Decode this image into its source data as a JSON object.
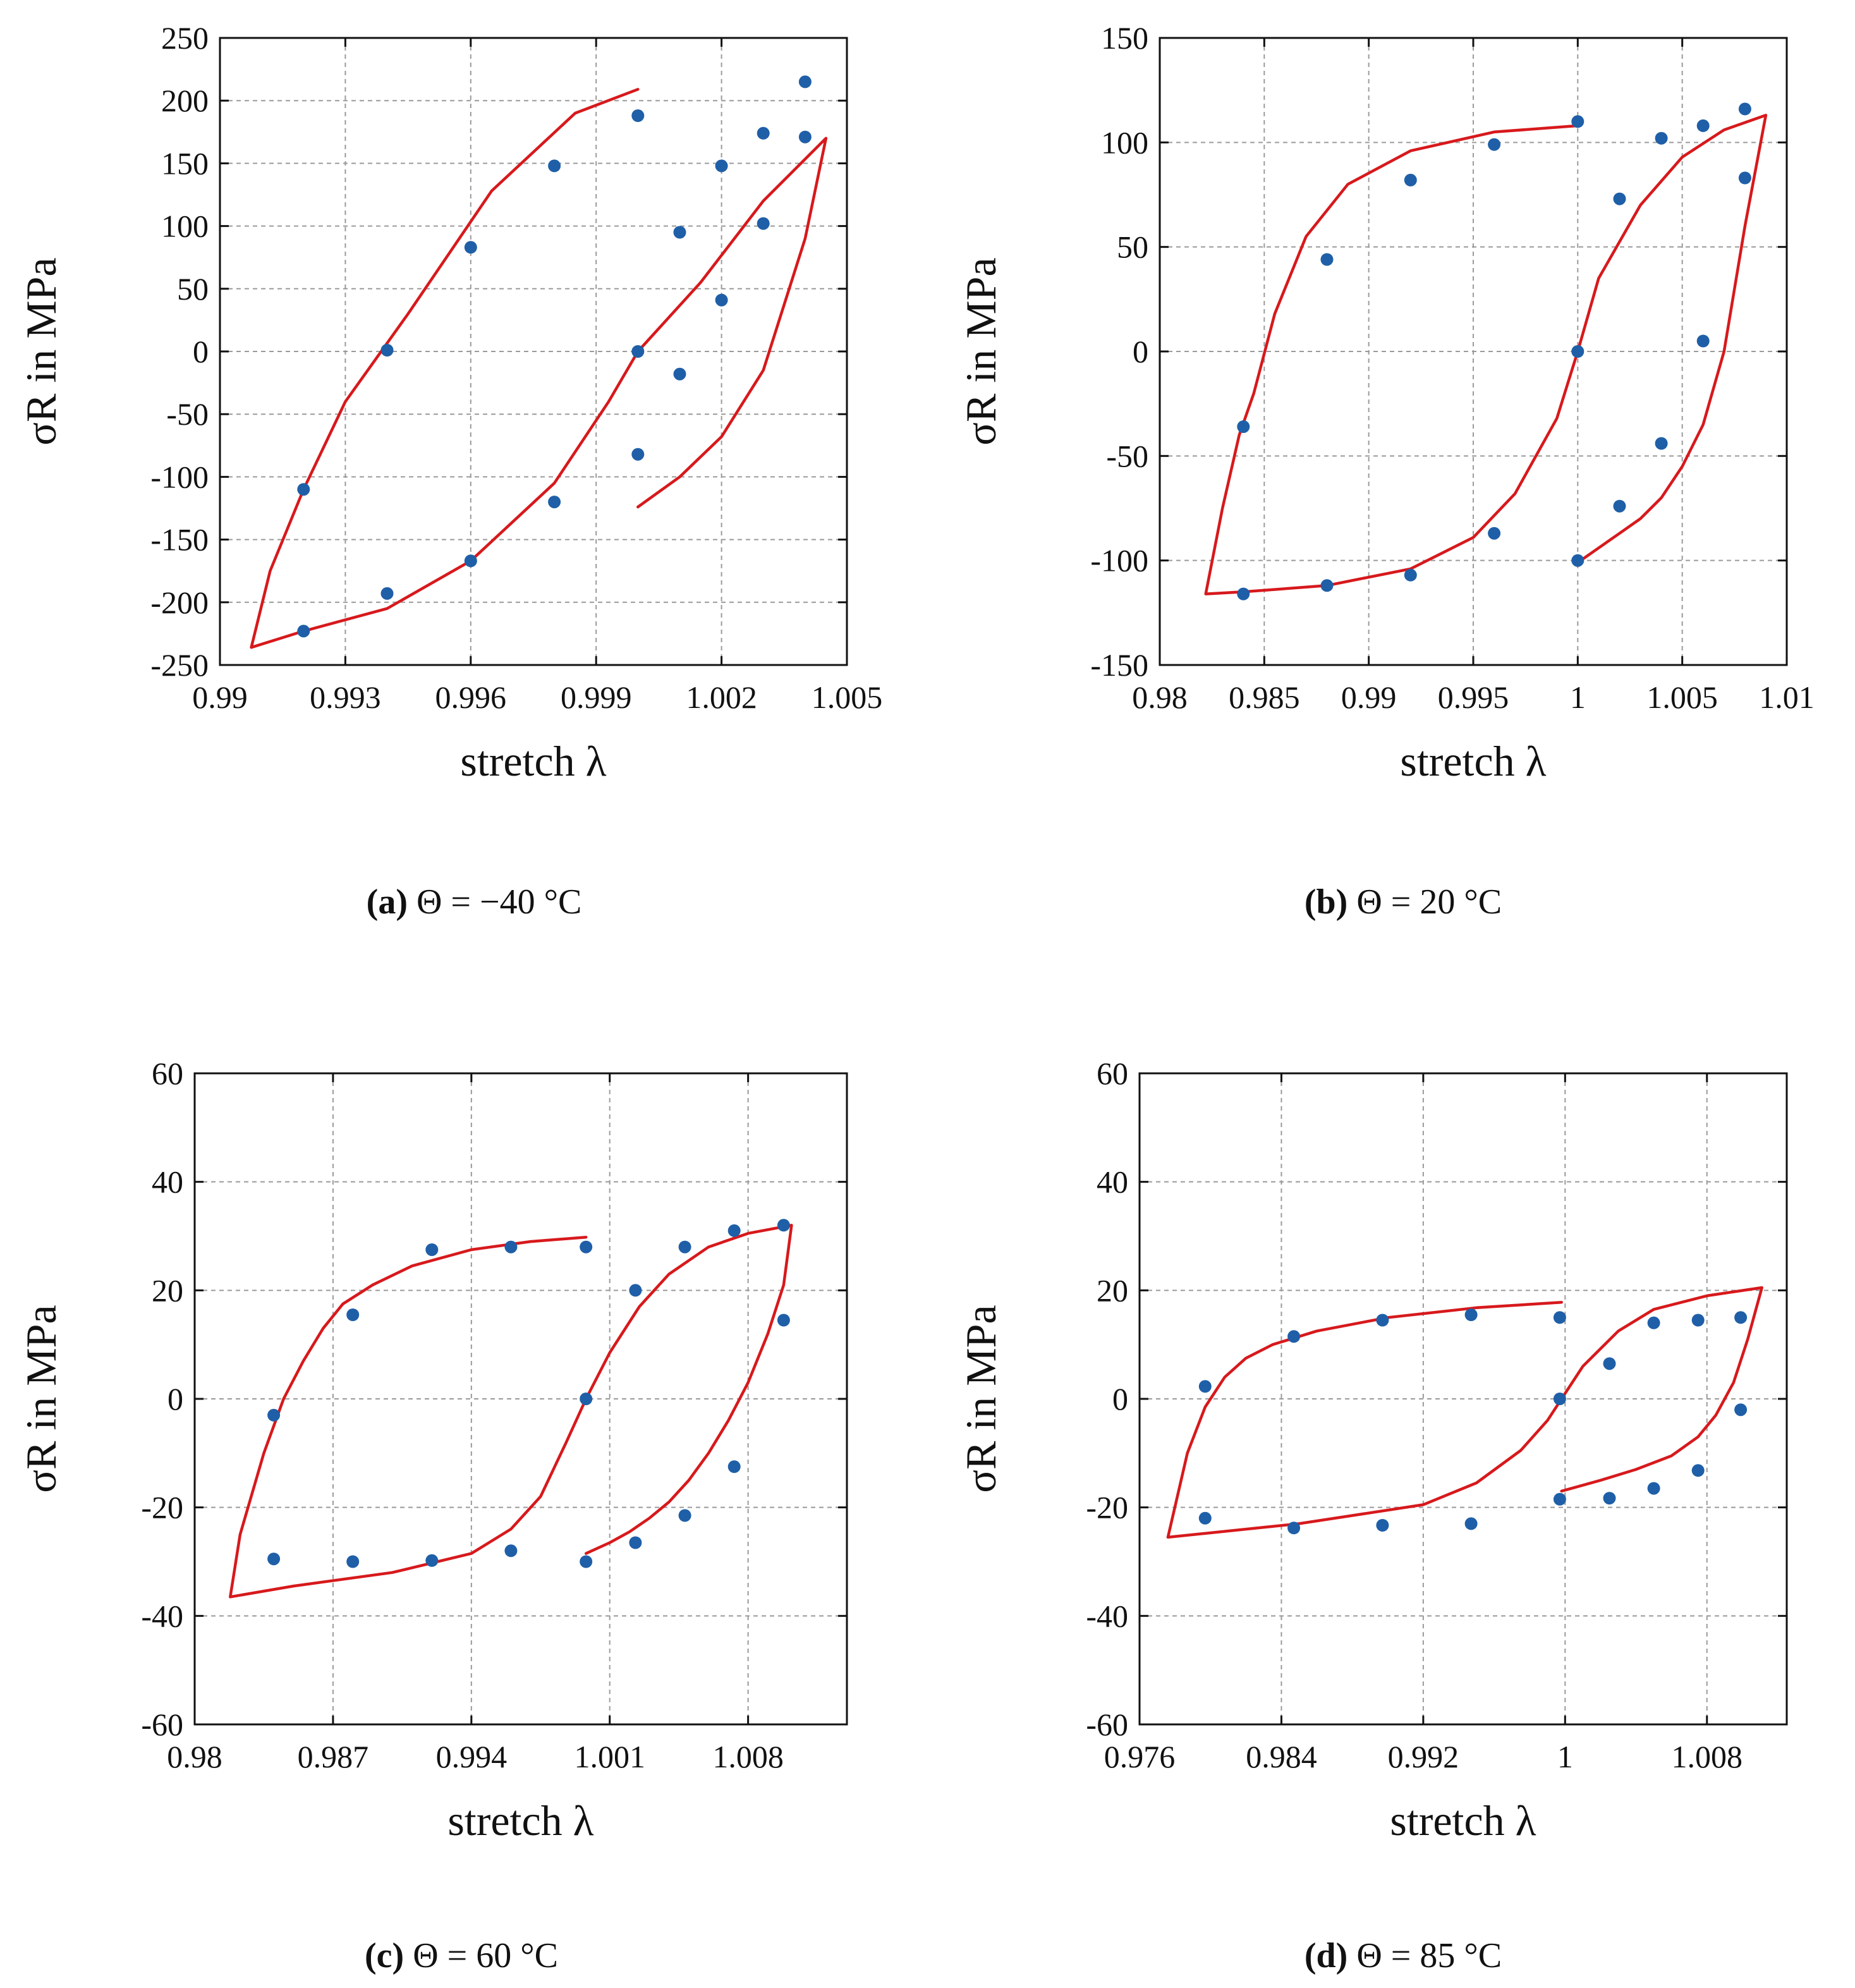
{
  "colors": {
    "model": "#d7191c",
    "experiment": "#1f5fa8",
    "grid": "#9a9a9a",
    "axes": "#111111"
  },
  "chart_data": [
    {
      "type": "scatter",
      "id": "a",
      "caption": {
        "label": "(a)",
        "condition": "Θ = −40 °C"
      },
      "xlabel": "stretch λ",
      "ylabel": "σR in MPa",
      "xlim": [
        0.99,
        1.005
      ],
      "ylim": [
        -250,
        250
      ],
      "xticks": [
        0.99,
        0.993,
        0.996,
        0.999,
        1.002,
        1.005
      ],
      "xtick_labels": [
        "0.99",
        "0.993",
        "0.996",
        "0.999",
        "1.002",
        "1.005"
      ],
      "yticks": [
        -250,
        -200,
        -150,
        -100,
        -50,
        0,
        50,
        100,
        150,
        200,
        250
      ],
      "ytick_labels": [
        "-250",
        "-200",
        "-150",
        "-100",
        "-50",
        "0",
        "50",
        "100",
        "150",
        "200",
        "250"
      ],
      "grid": true,
      "series": [
        {
          "name": "experiment",
          "kind": "points",
          "x": [
            0.992,
            0.992,
            0.994,
            0.994,
            0.996,
            0.996,
            0.998,
            0.998,
            1.0,
            1.0,
            1.0,
            1.001,
            1.001,
            1.002,
            1.002,
            1.003,
            1.003,
            1.004,
            1.004
          ],
          "y": [
            -110,
            -223,
            1,
            -193,
            83,
            -167,
            148,
            -120,
            188,
            0,
            -82,
            95,
            -18,
            148,
            41,
            174,
            102,
            215,
            171
          ]
        },
        {
          "name": "model",
          "kind": "curve",
          "x": [
            1.0,
            0.9985,
            0.9965,
            0.9945,
            0.993,
            0.992,
            0.9912,
            0.99075,
            0.99075,
            0.992,
            0.994,
            0.996,
            0.998,
            0.9993,
            1.0,
            1.0015,
            1.003,
            1.0045,
            1.004,
            1.003,
            1.002,
            1.001,
            1.0
          ],
          "y": [
            209,
            190,
            128,
            30,
            -40,
            -110,
            -175,
            -236,
            -236,
            -223,
            -205,
            -167,
            -105,
            -40,
            0,
            55,
            120,
            170,
            90,
            -15,
            -68,
            -100,
            -124
          ]
        }
      ]
    },
    {
      "type": "scatter",
      "id": "b",
      "caption": {
        "label": "(b)",
        "condition": "Θ = 20 °C"
      },
      "xlabel": "stretch λ",
      "ylabel": "σR in MPa",
      "xlim": [
        0.98,
        1.01
      ],
      "ylim": [
        -150,
        150
      ],
      "xticks": [
        0.98,
        0.985,
        0.99,
        0.995,
        1.0,
        1.005,
        1.01
      ],
      "xtick_labels": [
        "0.98",
        "0.985",
        "0.99",
        "0.995",
        "1",
        "1.005",
        "1.01"
      ],
      "yticks": [
        -150,
        -100,
        -50,
        0,
        50,
        100,
        150
      ],
      "ytick_labels": [
        "-150",
        "-100",
        "-50",
        "0",
        "50",
        "100",
        "150"
      ],
      "grid": true,
      "series": [
        {
          "name": "experiment",
          "kind": "points",
          "x": [
            0.984,
            0.984,
            0.988,
            0.988,
            0.992,
            0.992,
            0.996,
            0.996,
            1.0,
            1.0,
            1.0,
            1.002,
            1.002,
            1.004,
            1.004,
            1.006,
            1.006,
            1.008,
            1.008
          ],
          "y": [
            -36,
            -116,
            44,
            -112,
            82,
            -107,
            99,
            -87,
            110,
            0,
            -100,
            73,
            -74,
            102,
            -44,
            108,
            5,
            116,
            83
          ]
        },
        {
          "name": "model",
          "kind": "curve",
          "x": [
            1.0,
            0.996,
            0.992,
            0.989,
            0.987,
            0.9855,
            0.9845,
            0.9838,
            0.983,
            0.9822,
            0.9822,
            0.984,
            0.988,
            0.992,
            0.995,
            0.997,
            0.999,
            1.0,
            1.001,
            1.003,
            1.005,
            1.007,
            1.009,
            1.008,
            1.007,
            1.006,
            1.005,
            1.004,
            1.003,
            1.002,
            1.001,
            1.0
          ],
          "y": [
            108,
            105,
            96,
            80,
            55,
            18,
            -20,
            -40,
            -75,
            -116,
            -116,
            -115,
            -112,
            -104,
            -89,
            -68,
            -32,
            0,
            35,
            70,
            93,
            106,
            113,
            60,
            0,
            -35,
            -55,
            -70,
            -80,
            -87,
            -94,
            -101
          ]
        }
      ]
    },
    {
      "type": "scatter",
      "id": "c",
      "caption": {
        "label": "(c)",
        "condition": "Θ = 60 °C"
      },
      "xlabel": "stretch λ",
      "ylabel": "σR in MPa",
      "xlim": [
        0.98,
        1.013
      ],
      "ylim": [
        -60,
        60
      ],
      "xticks": [
        0.98,
        0.987,
        0.994,
        1.001,
        1.008
      ],
      "xtick_labels": [
        "0.98",
        "0.987",
        "0.994",
        "1.001",
        "1.008"
      ],
      "yticks": [
        -60,
        -40,
        -20,
        0,
        20,
        40,
        60
      ],
      "ytick_labels": [
        "-60",
        "-40",
        "-20",
        "0",
        "20",
        "40",
        "60"
      ],
      "grid": true,
      "series": [
        {
          "name": "experiment",
          "kind": "points",
          "x": [
            0.984,
            0.984,
            0.988,
            0.988,
            0.992,
            0.992,
            0.996,
            0.996,
            0.9998,
            0.9998,
            0.9998,
            1.0023,
            1.0023,
            1.0048,
            1.0048,
            1.0073,
            1.0073,
            1.0098,
            1.0098
          ],
          "y": [
            -3,
            -29.5,
            15.5,
            -30,
            27.5,
            -29.8,
            28,
            -28,
            28,
            0,
            -30,
            20,
            -26.5,
            28,
            -21.5,
            31,
            -12.5,
            32,
            14.5
          ]
        },
        {
          "name": "model",
          "kind": "curve",
          "x": [
            0.9998,
            0.997,
            0.994,
            0.991,
            0.989,
            0.9875,
            0.9865,
            0.9855,
            0.9845,
            0.9835,
            0.9823,
            0.9818,
            0.9818,
            0.985,
            0.99,
            0.994,
            0.996,
            0.9975,
            0.9988,
            0.9998,
            1.001,
            1.0025,
            1.004,
            1.006,
            1.008,
            1.0102,
            1.0098,
            1.009,
            1.008,
            1.007,
            1.006,
            1.005,
            1.004,
            1.003,
            1.002,
            1.001,
            0.9998
          ],
          "y": [
            29.8,
            29,
            27.5,
            24.5,
            21,
            17.5,
            13,
            7,
            0,
            -10,
            -25,
            -36.5,
            -36.5,
            -34.5,
            -32,
            -28.5,
            -24,
            -18,
            -8,
            0,
            8.5,
            17,
            23,
            28,
            30.5,
            32,
            21,
            12,
            3,
            -4,
            -10,
            -15,
            -19,
            -22,
            -24.5,
            -26.5,
            -28.5
          ]
        }
      ]
    },
    {
      "type": "scatter",
      "id": "d",
      "caption": {
        "label": "(d)",
        "condition": "Θ = 85 °C"
      },
      "xlabel": "stretch λ",
      "ylabel": "σR in MPa",
      "xlim": [
        0.976,
        1.0125
      ],
      "ylim": [
        -60,
        60
      ],
      "xticks": [
        0.976,
        0.984,
        0.992,
        1.0,
        1.008
      ],
      "xtick_labels": [
        "0.976",
        "0.984",
        "0.992",
        "1",
        "1.008"
      ],
      "yticks": [
        -60,
        -40,
        -20,
        0,
        20,
        40,
        60
      ],
      "ytick_labels": [
        "-60",
        "-40",
        "-20",
        "0",
        "20",
        "40",
        "60"
      ],
      "grid": true,
      "series": [
        {
          "name": "experiment",
          "kind": "points",
          "x": [
            0.9797,
            0.9797,
            0.9847,
            0.9847,
            0.9897,
            0.9897,
            0.9947,
            0.9947,
            0.9997,
            0.9997,
            0.9997,
            1.0025,
            1.0025,
            1.005,
            1.005,
            1.0075,
            1.0075,
            1.0099,
            1.0099
          ],
          "y": [
            2.3,
            -22,
            11.5,
            -23.8,
            14.5,
            -23.3,
            15.5,
            -23,
            15,
            0,
            -18.5,
            6.5,
            -18.3,
            14,
            -16.5,
            14.5,
            -13.2,
            15,
            -2
          ]
        },
        {
          "name": "model",
          "kind": "curve",
          "x": [
            0.9998,
            0.995,
            0.99,
            0.986,
            0.9835,
            0.982,
            0.9808,
            0.9797,
            0.9787,
            0.9776,
            0.9776,
            0.985,
            0.992,
            0.995,
            0.9975,
            0.999,
            0.9998,
            1.001,
            1.003,
            1.005,
            1.008,
            1.0111,
            1.0103,
            1.0095,
            1.0085,
            1.0075,
            1.006,
            1.004,
            1.002,
            0.9998
          ],
          "y": [
            17.8,
            16.8,
            15,
            12.5,
            10,
            7.5,
            4,
            -1.5,
            -10,
            -25.5,
            -25.5,
            -23,
            -19.5,
            -15.5,
            -9.5,
            -4,
            0,
            6,
            12.5,
            16.5,
            19,
            20.5,
            11,
            3,
            -3,
            -7,
            -10.5,
            -13,
            -15,
            -17
          ]
        }
      ]
    }
  ]
}
